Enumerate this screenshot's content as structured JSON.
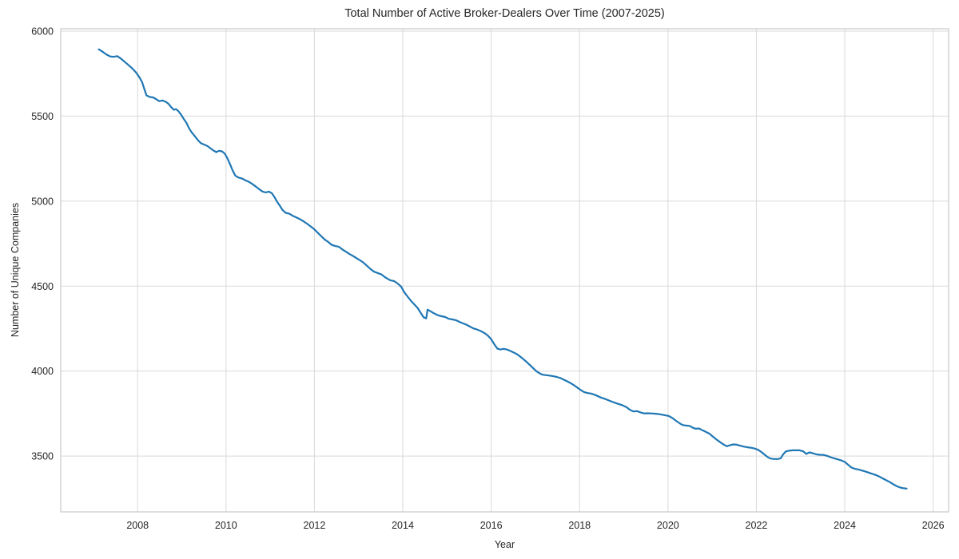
{
  "chart_data": {
    "type": "line",
    "title": "Total Number of Active Broker-Dealers Over Time (2007-2025)",
    "xlabel": "Year",
    "ylabel": "Number of Unique Companies",
    "x_ticks": [
      2008,
      2010,
      2012,
      2014,
      2016,
      2018,
      2020,
      2022,
      2024,
      2026
    ],
    "y_ticks": [
      3500,
      4000,
      4500,
      5000,
      5500,
      6000
    ],
    "xlim": [
      2006.26,
      2026.35
    ],
    "ylim": [
      3172,
      6014
    ],
    "grid": true,
    "legend_position": "none",
    "line_color": "#1f77b4",
    "grid_color": "#d9d9d9",
    "spine_color": "#cccccc",
    "series": [
      {
        "name": "Active Broker-Dealers",
        "points": [
          [
            2007.12,
            5893
          ],
          [
            2007.2,
            5880
          ],
          [
            2007.29,
            5863
          ],
          [
            2007.38,
            5851
          ],
          [
            2007.46,
            5849
          ],
          [
            2007.54,
            5853
          ],
          [
            2007.62,
            5839
          ],
          [
            2007.7,
            5821
          ],
          [
            2007.79,
            5801
          ],
          [
            2007.87,
            5783
          ],
          [
            2007.95,
            5761
          ],
          [
            2008.04,
            5729
          ],
          [
            2008.1,
            5700
          ],
          [
            2008.15,
            5661
          ],
          [
            2008.2,
            5622
          ],
          [
            2008.27,
            5613
          ],
          [
            2008.35,
            5610
          ],
          [
            2008.43,
            5598
          ],
          [
            2008.49,
            5588
          ],
          [
            2008.56,
            5592
          ],
          [
            2008.64,
            5584
          ],
          [
            2008.7,
            5572
          ],
          [
            2008.76,
            5552
          ],
          [
            2008.82,
            5537
          ],
          [
            2008.87,
            5541
          ],
          [
            2008.92,
            5530
          ],
          [
            2008.98,
            5510
          ],
          [
            2009.04,
            5485
          ],
          [
            2009.1,
            5462
          ],
          [
            2009.16,
            5430
          ],
          [
            2009.22,
            5405
          ],
          [
            2009.29,
            5383
          ],
          [
            2009.36,
            5360
          ],
          [
            2009.43,
            5341
          ],
          [
            2009.5,
            5333
          ],
          [
            2009.58,
            5324
          ],
          [
            2009.65,
            5310
          ],
          [
            2009.72,
            5297
          ],
          [
            2009.78,
            5288
          ],
          [
            2009.84,
            5296
          ],
          [
            2009.91,
            5293
          ],
          [
            2009.97,
            5280
          ],
          [
            2010.03,
            5252
          ],
          [
            2010.09,
            5218
          ],
          [
            2010.15,
            5180
          ],
          [
            2010.21,
            5150
          ],
          [
            2010.28,
            5139
          ],
          [
            2010.36,
            5133
          ],
          [
            2010.44,
            5122
          ],
          [
            2010.52,
            5113
          ],
          [
            2010.6,
            5100
          ],
          [
            2010.68,
            5085
          ],
          [
            2010.76,
            5068
          ],
          [
            2010.83,
            5056
          ],
          [
            2010.9,
            5051
          ],
          [
            2010.97,
            5056
          ],
          [
            2011.04,
            5046
          ],
          [
            2011.1,
            5022
          ],
          [
            2011.16,
            4994
          ],
          [
            2011.22,
            4972
          ],
          [
            2011.28,
            4947
          ],
          [
            2011.35,
            4931
          ],
          [
            2011.43,
            4926
          ],
          [
            2011.51,
            4914
          ],
          [
            2011.59,
            4904
          ],
          [
            2011.67,
            4894
          ],
          [
            2011.75,
            4882
          ],
          [
            2011.83,
            4868
          ],
          [
            2011.91,
            4852
          ],
          [
            2011.99,
            4836
          ],
          [
            2012.07,
            4815
          ],
          [
            2012.15,
            4795
          ],
          [
            2012.23,
            4775
          ],
          [
            2012.31,
            4760
          ],
          [
            2012.39,
            4743
          ],
          [
            2012.47,
            4736
          ],
          [
            2012.55,
            4732
          ],
          [
            2012.63,
            4716
          ],
          [
            2012.71,
            4703
          ],
          [
            2012.79,
            4690
          ],
          [
            2012.87,
            4678
          ],
          [
            2012.95,
            4665
          ],
          [
            2013.03,
            4652
          ],
          [
            2013.11,
            4638
          ],
          [
            2013.19,
            4620
          ],
          [
            2013.27,
            4600
          ],
          [
            2013.35,
            4585
          ],
          [
            2013.43,
            4577
          ],
          [
            2013.51,
            4570
          ],
          [
            2013.58,
            4556
          ],
          [
            2013.65,
            4544
          ],
          [
            2013.72,
            4534
          ],
          [
            2013.8,
            4530
          ],
          [
            2013.88,
            4516
          ],
          [
            2013.96,
            4498
          ],
          [
            2014.03,
            4465
          ],
          [
            2014.11,
            4438
          ],
          [
            2014.19,
            4412
          ],
          [
            2014.27,
            4390
          ],
          [
            2014.34,
            4370
          ],
          [
            2014.41,
            4341
          ],
          [
            2014.47,
            4317
          ],
          [
            2014.53,
            4310
          ],
          [
            2014.56,
            4362
          ],
          [
            2014.64,
            4350
          ],
          [
            2014.72,
            4338
          ],
          [
            2014.8,
            4328
          ],
          [
            2014.88,
            4323
          ],
          [
            2014.96,
            4318
          ],
          [
            2015.04,
            4308
          ],
          [
            2015.12,
            4304
          ],
          [
            2015.2,
            4300
          ],
          [
            2015.28,
            4290
          ],
          [
            2015.36,
            4281
          ],
          [
            2015.44,
            4273
          ],
          [
            2015.52,
            4262
          ],
          [
            2015.6,
            4251
          ],
          [
            2015.68,
            4245
          ],
          [
            2015.76,
            4236
          ],
          [
            2015.84,
            4225
          ],
          [
            2015.92,
            4210
          ],
          [
            2016.0,
            4188
          ],
          [
            2016.07,
            4158
          ],
          [
            2016.14,
            4132
          ],
          [
            2016.21,
            4127
          ],
          [
            2016.28,
            4131
          ],
          [
            2016.36,
            4127
          ],
          [
            2016.44,
            4118
          ],
          [
            2016.52,
            4108
          ],
          [
            2016.6,
            4097
          ],
          [
            2016.67,
            4083
          ],
          [
            2016.74,
            4068
          ],
          [
            2016.81,
            4052
          ],
          [
            2016.88,
            4035
          ],
          [
            2016.95,
            4017
          ],
          [
            2017.02,
            4000
          ],
          [
            2017.09,
            3988
          ],
          [
            2017.16,
            3979
          ],
          [
            2017.24,
            3976
          ],
          [
            2017.32,
            3974
          ],
          [
            2017.4,
            3970
          ],
          [
            2017.48,
            3966
          ],
          [
            2017.56,
            3960
          ],
          [
            2017.64,
            3950
          ],
          [
            2017.72,
            3940
          ],
          [
            2017.8,
            3929
          ],
          [
            2017.88,
            3916
          ],
          [
            2017.96,
            3901
          ],
          [
            2018.03,
            3888
          ],
          [
            2018.1,
            3877
          ],
          [
            2018.18,
            3871
          ],
          [
            2018.26,
            3868
          ],
          [
            2018.34,
            3861
          ],
          [
            2018.42,
            3852
          ],
          [
            2018.5,
            3843
          ],
          [
            2018.58,
            3836
          ],
          [
            2018.66,
            3828
          ],
          [
            2018.74,
            3820
          ],
          [
            2018.82,
            3812
          ],
          [
            2018.9,
            3805
          ],
          [
            2018.98,
            3798
          ],
          [
            2019.06,
            3788
          ],
          [
            2019.14,
            3772
          ],
          [
            2019.22,
            3763
          ],
          [
            2019.3,
            3765
          ],
          [
            2019.38,
            3757
          ],
          [
            2019.46,
            3751
          ],
          [
            2019.54,
            3752
          ],
          [
            2019.62,
            3751
          ],
          [
            2019.7,
            3750
          ],
          [
            2019.78,
            3748
          ],
          [
            2019.86,
            3744
          ],
          [
            2019.94,
            3740
          ],
          [
            2020.02,
            3736
          ],
          [
            2020.1,
            3724
          ],
          [
            2020.18,
            3708
          ],
          [
            2020.26,
            3694
          ],
          [
            2020.33,
            3683
          ],
          [
            2020.41,
            3680
          ],
          [
            2020.49,
            3678
          ],
          [
            2020.56,
            3667
          ],
          [
            2020.63,
            3661
          ],
          [
            2020.7,
            3663
          ],
          [
            2020.78,
            3652
          ],
          [
            2020.86,
            3642
          ],
          [
            2020.94,
            3632
          ],
          [
            2021.02,
            3614
          ],
          [
            2021.1,
            3597
          ],
          [
            2021.18,
            3582
          ],
          [
            2021.26,
            3568
          ],
          [
            2021.33,
            3558
          ],
          [
            2021.4,
            3564
          ],
          [
            2021.48,
            3569
          ],
          [
            2021.56,
            3567
          ],
          [
            2021.64,
            3561
          ],
          [
            2021.72,
            3556
          ],
          [
            2021.8,
            3552
          ],
          [
            2021.88,
            3549
          ],
          [
            2021.96,
            3545
          ],
          [
            2022.04,
            3537
          ],
          [
            2022.11,
            3525
          ],
          [
            2022.18,
            3510
          ],
          [
            2022.25,
            3495
          ],
          [
            2022.32,
            3486
          ],
          [
            2022.4,
            3483
          ],
          [
            2022.48,
            3483
          ],
          [
            2022.55,
            3487
          ],
          [
            2022.61,
            3512
          ],
          [
            2022.67,
            3528
          ],
          [
            2022.74,
            3532
          ],
          [
            2022.82,
            3534
          ],
          [
            2022.9,
            3534
          ],
          [
            2022.98,
            3534
          ],
          [
            2023.06,
            3528
          ],
          [
            2023.13,
            3513
          ],
          [
            2023.2,
            3522
          ],
          [
            2023.28,
            3517
          ],
          [
            2023.36,
            3510
          ],
          [
            2023.44,
            3508
          ],
          [
            2023.52,
            3507
          ],
          [
            2023.6,
            3502
          ],
          [
            2023.68,
            3494
          ],
          [
            2023.76,
            3487
          ],
          [
            2023.84,
            3481
          ],
          [
            2023.92,
            3475
          ],
          [
            2024.0,
            3466
          ],
          [
            2024.08,
            3448
          ],
          [
            2024.15,
            3433
          ],
          [
            2024.22,
            3426
          ],
          [
            2024.3,
            3422
          ],
          [
            2024.38,
            3416
          ],
          [
            2024.46,
            3410
          ],
          [
            2024.54,
            3403
          ],
          [
            2024.62,
            3396
          ],
          [
            2024.7,
            3389
          ],
          [
            2024.78,
            3380
          ],
          [
            2024.86,
            3369
          ],
          [
            2024.94,
            3358
          ],
          [
            2025.02,
            3347
          ],
          [
            2025.1,
            3334
          ],
          [
            2025.18,
            3323
          ],
          [
            2025.26,
            3315
          ],
          [
            2025.33,
            3311
          ],
          [
            2025.4,
            3309
          ]
        ]
      }
    ]
  }
}
